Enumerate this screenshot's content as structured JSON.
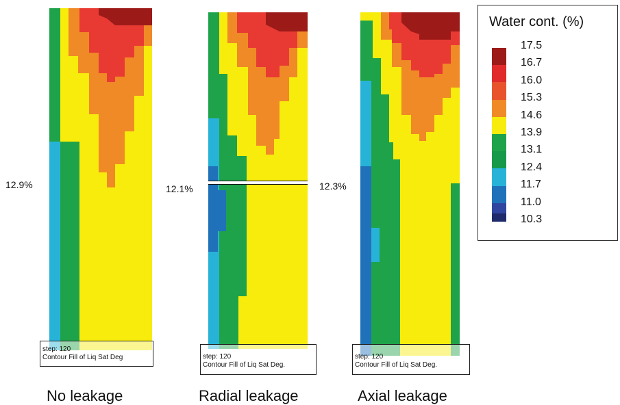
{
  "colors": {
    "c10.3": "#1f2d6e",
    "c11.0": "#2e4aa3",
    "c11.7": "#1e6fb8",
    "c12.4": "#26b0d6",
    "c13.1": "#179d48",
    "c13.9": "#1fa34a",
    "c14.6": "#f7ec0c",
    "c15.3": "#ee8128",
    "c16.0": "#e83a33",
    "c17.5": "#9c1b19"
  },
  "legend": {
    "title": "Water cont. (%)",
    "entries": [
      {
        "value": "17.5",
        "color": "#9c1b19"
      },
      {
        "value": "16.7",
        "color": "#e02b2a"
      },
      {
        "value": "16.0",
        "color": "#e8532b"
      },
      {
        "value": "15.3",
        "color": "#ef8a26"
      },
      {
        "value": "14.6",
        "color": "#f7ec0c"
      },
      {
        "value": "13.9",
        "color": "#1fa34a"
      },
      {
        "value": "13.1",
        "color": "#17994a"
      },
      {
        "value": "12.4",
        "color": "#27b3d8"
      },
      {
        "value": "11.7",
        "color": "#1f72ba"
      },
      {
        "value": "11.0",
        "color": "#2f45a0"
      },
      {
        "value": "10.3",
        "color": "#1f2b6b"
      }
    ]
  },
  "panels": [
    {
      "title": "No leakage",
      "value_label": "12.9%",
      "step_text": "step: 120",
      "contour_text": "Contour Fill of Liq Sat Deg"
    },
    {
      "title": "Radial leakage",
      "value_label": "12.1%",
      "step_text": "step: 120",
      "contour_text": "Contour Fill of Liq Sat Deg."
    },
    {
      "title": "Axial leakage",
      "value_label": "12.3%",
      "step_text": "step: 120",
      "contour_text": "Contour Fill of Liq Sat Deg."
    }
  ]
}
